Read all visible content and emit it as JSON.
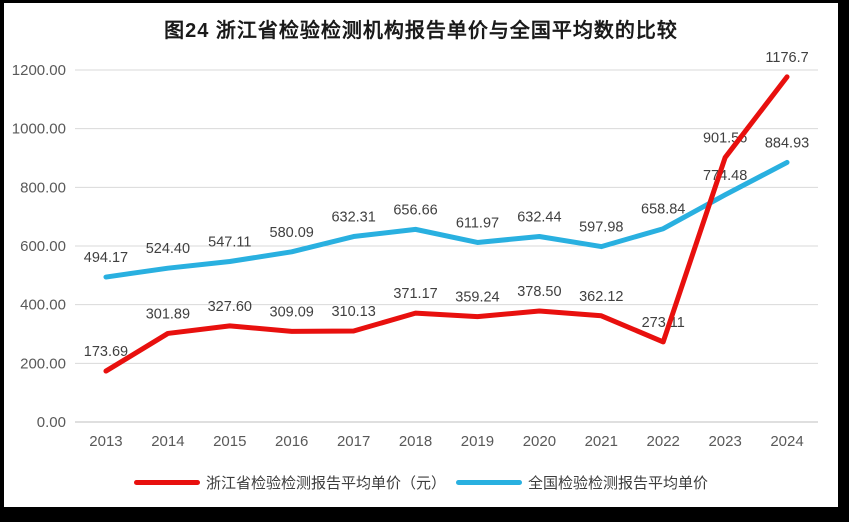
{
  "chart_data": {
    "type": "line",
    "title": "图24  浙江省检验检测机构报告单价与全国平均数的比较",
    "categories": [
      "2013",
      "2014",
      "2015",
      "2016",
      "2017",
      "2018",
      "2019",
      "2020",
      "2021",
      "2022",
      "2023",
      "2024"
    ],
    "series": [
      {
        "key": "zhejiang",
        "name": "浙江省检验检测报告平均单价（元）",
        "color": "#e8100e",
        "values": [
          173.69,
          301.89,
          327.6,
          309.09,
          310.13,
          371.17,
          359.24,
          378.5,
          362.12,
          273.11,
          901.56,
          1176.7
        ],
        "labels": [
          "173.69",
          "301.89",
          "327.60",
          "309.09",
          "310.13",
          "371.17",
          "359.24",
          "378.50",
          "362.12",
          "273.11",
          "901.56",
          "1176.7"
        ]
      },
      {
        "key": "national",
        "name": "全国检验检测报告平均单价",
        "color": "#29b0e0",
        "values": [
          494.17,
          524.4,
          547.11,
          580.09,
          632.31,
          656.66,
          611.97,
          632.44,
          597.98,
          658.84,
          774.48,
          884.93
        ],
        "labels": [
          "494.17",
          "524.40",
          "547.11",
          "580.09",
          "632.31",
          "656.66",
          "611.97",
          "632.44",
          "597.98",
          "658.84",
          "774.48",
          "884.93"
        ]
      }
    ],
    "ylim": [
      0,
      1200
    ],
    "ytick_step": 200,
    "ytick_labels": [
      "0.00",
      "200.00",
      "400.00",
      "600.00",
      "800.00",
      "1000.00",
      "1200.00"
    ],
    "grid": true,
    "legend_position": "bottom"
  }
}
